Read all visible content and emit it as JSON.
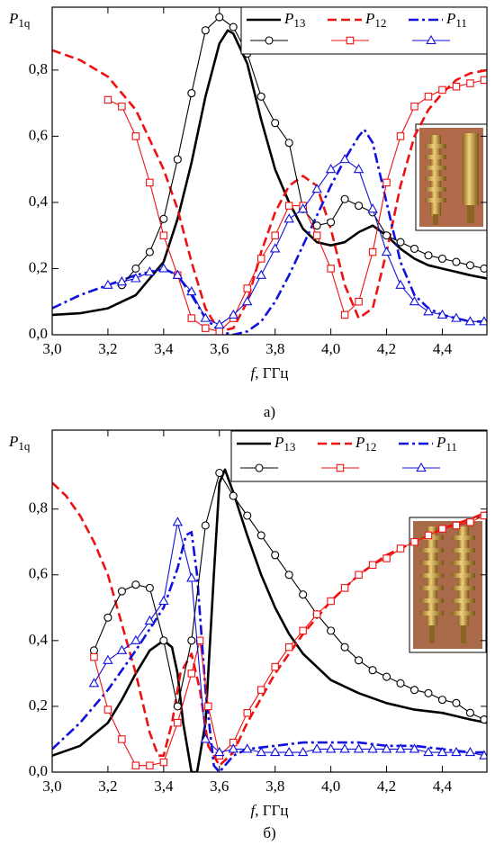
{
  "chart_data": [
    {
      "type": "line",
      "ylabel": "P1q",
      "xlabel": "f, ГГц",
      "caption": "а)",
      "xlim": [
        3.0,
        4.56
      ],
      "ylim": [
        0,
        0.99
      ],
      "xticks": [
        {
          "value": 3.0,
          "label": "3,0"
        },
        {
          "value": 3.2,
          "label": "3,2"
        },
        {
          "value": 3.4,
          "label": "3,4"
        },
        {
          "value": 3.6,
          "label": "3,6"
        },
        {
          "value": 3.8,
          "label": "3,8"
        },
        {
          "value": 4.0,
          "label": "4,0"
        },
        {
          "value": 4.2,
          "label": "4,2"
        },
        {
          "value": 4.4,
          "label": "4,4"
        }
      ],
      "yticks": [
        {
          "value": 0,
          "label": "0,0"
        },
        {
          "value": 0.2,
          "label": "0,2"
        },
        {
          "value": 0.4,
          "label": "0,4"
        },
        {
          "value": 0.6,
          "label": "0,6"
        },
        {
          "value": 0.8,
          "label": "0,8"
        }
      ],
      "series": [
        {
          "name": "P13",
          "color": "#000000",
          "dash": "solid",
          "x": [
            3.0,
            3.1,
            3.2,
            3.3,
            3.4,
            3.45,
            3.5,
            3.55,
            3.6,
            3.63,
            3.65,
            3.7,
            3.75,
            3.8,
            3.85,
            3.9,
            3.95,
            4.0,
            4.05,
            4.1,
            4.15,
            4.2,
            4.25,
            4.3,
            4.35,
            4.4,
            4.45,
            4.5,
            4.56
          ],
          "values": [
            0.06,
            0.065,
            0.08,
            0.12,
            0.22,
            0.35,
            0.52,
            0.72,
            0.88,
            0.92,
            0.91,
            0.82,
            0.65,
            0.5,
            0.4,
            0.32,
            0.28,
            0.27,
            0.28,
            0.31,
            0.33,
            0.3,
            0.26,
            0.23,
            0.21,
            0.2,
            0.19,
            0.18,
            0.17
          ]
        },
        {
          "name": "P12",
          "color": "#ee1111",
          "dash": "dashed",
          "x": [
            3.0,
            3.1,
            3.2,
            3.3,
            3.4,
            3.45,
            3.5,
            3.55,
            3.6,
            3.65,
            3.7,
            3.75,
            3.8,
            3.85,
            3.9,
            3.95,
            4.0,
            4.05,
            4.1,
            4.15,
            4.2,
            4.25,
            4.3,
            4.35,
            4.4,
            4.45,
            4.5,
            4.56
          ],
          "values": [
            0.86,
            0.83,
            0.78,
            0.68,
            0.5,
            0.38,
            0.22,
            0.08,
            0.01,
            0.02,
            0.1,
            0.25,
            0.37,
            0.45,
            0.48,
            0.45,
            0.32,
            0.15,
            0.05,
            0.08,
            0.25,
            0.45,
            0.6,
            0.68,
            0.73,
            0.77,
            0.79,
            0.8
          ]
        },
        {
          "name": "P11",
          "color": "#1111dd",
          "dash": "dashdot",
          "x": [
            3.0,
            3.1,
            3.2,
            3.3,
            3.4,
            3.45,
            3.5,
            3.55,
            3.6,
            3.65,
            3.7,
            3.75,
            3.8,
            3.85,
            3.9,
            3.95,
            4.0,
            4.05,
            4.1,
            4.12,
            4.15,
            4.2,
            4.25,
            4.3,
            4.35,
            4.4,
            4.45,
            4.5,
            4.56
          ],
          "values": [
            0.08,
            0.12,
            0.15,
            0.18,
            0.2,
            0.18,
            0.12,
            0.05,
            0.01,
            0.0,
            0.01,
            0.04,
            0.1,
            0.18,
            0.27,
            0.36,
            0.45,
            0.53,
            0.6,
            0.62,
            0.58,
            0.4,
            0.22,
            0.12,
            0.08,
            0.06,
            0.05,
            0.04,
            0.04
          ]
        },
        {
          "color": "#000000",
          "marker": "circle",
          "x": [
            3.25,
            3.3,
            3.35,
            3.4,
            3.45,
            3.5,
            3.55,
            3.6,
            3.65,
            3.7,
            3.75,
            3.8,
            3.85,
            3.9,
            3.95,
            4.0,
            4.05,
            4.1,
            4.15,
            4.2,
            4.25,
            4.3,
            4.35,
            4.4,
            4.45,
            4.5,
            4.55
          ],
          "values": [
            0.15,
            0.2,
            0.25,
            0.35,
            0.53,
            0.73,
            0.92,
            0.96,
            0.93,
            0.85,
            0.72,
            0.64,
            0.58,
            0.38,
            0.33,
            0.34,
            0.41,
            0.39,
            0.37,
            0.3,
            0.28,
            0.26,
            0.24,
            0.23,
            0.22,
            0.21,
            0.2
          ]
        },
        {
          "color": "#ee1111",
          "marker": "square",
          "x": [
            3.2,
            3.25,
            3.3,
            3.35,
            3.4,
            3.45,
            3.5,
            3.55,
            3.6,
            3.65,
            3.7,
            3.75,
            3.8,
            3.85,
            3.9,
            3.95,
            4.0,
            4.05,
            4.1,
            4.15,
            4.2,
            4.25,
            4.3,
            4.35,
            4.4,
            4.45,
            4.5,
            4.55
          ],
          "values": [
            0.71,
            0.69,
            0.6,
            0.46,
            0.3,
            0.18,
            0.05,
            0.02,
            0.01,
            0.05,
            0.14,
            0.23,
            0.3,
            0.39,
            0.39,
            0.3,
            0.2,
            0.06,
            0.1,
            0.25,
            0.46,
            0.6,
            0.69,
            0.72,
            0.74,
            0.75,
            0.76,
            0.77
          ]
        },
        {
          "color": "#1111dd",
          "marker": "triangle",
          "x": [
            3.2,
            3.25,
            3.3,
            3.35,
            3.4,
            3.45,
            3.5,
            3.55,
            3.6,
            3.65,
            3.7,
            3.75,
            3.8,
            3.85,
            3.9,
            3.95,
            4.0,
            4.05,
            4.1,
            4.15,
            4.2,
            4.25,
            4.3,
            4.35,
            4.4,
            4.45,
            4.5,
            4.55
          ],
          "values": [
            0.15,
            0.16,
            0.17,
            0.19,
            0.2,
            0.18,
            0.13,
            0.05,
            0.03,
            0.06,
            0.1,
            0.18,
            0.26,
            0.35,
            0.38,
            0.44,
            0.5,
            0.53,
            0.5,
            0.38,
            0.25,
            0.15,
            0.1,
            0.07,
            0.06,
            0.05,
            0.04,
            0.04
          ]
        }
      ]
    },
    {
      "type": "line",
      "ylabel": "P1q",
      "xlabel": "f, ГГц",
      "caption": "б)",
      "xlim": [
        3.0,
        4.56
      ],
      "ylim": [
        0,
        1.04
      ],
      "xticks": [
        {
          "value": 3.0,
          "label": "3,0"
        },
        {
          "value": 3.2,
          "label": "3,2"
        },
        {
          "value": 3.4,
          "label": "3,4"
        },
        {
          "value": 3.6,
          "label": "3,6"
        },
        {
          "value": 3.8,
          "label": "3,8"
        },
        {
          "value": 4.0,
          "label": "4,0"
        },
        {
          "value": 4.2,
          "label": "4,2"
        },
        {
          "value": 4.4,
          "label": "4,4"
        }
      ],
      "yticks": [
        {
          "value": 0,
          "label": "0,0"
        },
        {
          "value": 0.2,
          "label": "0,2"
        },
        {
          "value": 0.4,
          "label": "0,4"
        },
        {
          "value": 0.6,
          "label": "0,6"
        },
        {
          "value": 0.8,
          "label": "0,8"
        }
      ],
      "series": [
        {
          "name": "P13",
          "color": "#000000",
          "dash": "solid",
          "x": [
            3.0,
            3.1,
            3.2,
            3.25,
            3.3,
            3.35,
            3.4,
            3.43,
            3.45,
            3.47,
            3.5,
            3.52,
            3.55,
            3.58,
            3.6,
            3.62,
            3.65,
            3.7,
            3.75,
            3.8,
            3.85,
            3.9,
            3.95,
            4.0,
            4.1,
            4.2,
            4.3,
            4.4,
            4.5,
            4.56
          ],
          "values": [
            0.05,
            0.08,
            0.15,
            0.22,
            0.3,
            0.37,
            0.4,
            0.38,
            0.3,
            0.15,
            0.0,
            0.0,
            0.15,
            0.6,
            0.88,
            0.92,
            0.85,
            0.72,
            0.6,
            0.5,
            0.42,
            0.36,
            0.32,
            0.28,
            0.24,
            0.21,
            0.19,
            0.18,
            0.16,
            0.15
          ]
        },
        {
          "name": "P12",
          "color": "#ee1111",
          "dash": "dashed",
          "x": [
            3.0,
            3.05,
            3.1,
            3.15,
            3.2,
            3.25,
            3.3,
            3.35,
            3.38,
            3.4,
            3.43,
            3.46,
            3.5,
            3.53,
            3.56,
            3.6,
            3.65,
            3.7,
            3.8,
            3.9,
            4.0,
            4.1,
            4.2,
            4.3,
            4.4,
            4.5,
            4.56
          ],
          "values": [
            0.88,
            0.84,
            0.78,
            0.7,
            0.6,
            0.45,
            0.3,
            0.12,
            0.05,
            0.05,
            0.15,
            0.3,
            0.36,
            0.25,
            0.08,
            0.02,
            0.06,
            0.15,
            0.3,
            0.42,
            0.52,
            0.6,
            0.66,
            0.7,
            0.74,
            0.77,
            0.79
          ]
        },
        {
          "name": "P11",
          "color": "#1111dd",
          "dash": "dashdot",
          "x": [
            3.0,
            3.1,
            3.2,
            3.3,
            3.4,
            3.45,
            3.48,
            3.5,
            3.52,
            3.55,
            3.58,
            3.6,
            3.65,
            3.7,
            3.8,
            3.9,
            4.0,
            4.1,
            4.2,
            4.3,
            4.4,
            4.5,
            4.56
          ],
          "values": [
            0.07,
            0.15,
            0.25,
            0.37,
            0.5,
            0.62,
            0.72,
            0.73,
            0.6,
            0.25,
            0.02,
            0.0,
            0.05,
            0.07,
            0.08,
            0.09,
            0.09,
            0.09,
            0.08,
            0.08,
            0.07,
            0.06,
            0.06
          ]
        },
        {
          "color": "#000000",
          "marker": "circle",
          "x": [
            3.15,
            3.2,
            3.25,
            3.3,
            3.35,
            3.4,
            3.45,
            3.5,
            3.55,
            3.6,
            3.65,
            3.7,
            3.75,
            3.8,
            3.85,
            3.9,
            3.95,
            4.0,
            4.05,
            4.1,
            4.15,
            4.2,
            4.25,
            4.3,
            4.35,
            4.4,
            4.45,
            4.5,
            4.55
          ],
          "values": [
            0.37,
            0.47,
            0.55,
            0.57,
            0.56,
            0.4,
            0.2,
            0.4,
            0.75,
            0.91,
            0.84,
            0.78,
            0.72,
            0.66,
            0.6,
            0.54,
            0.48,
            0.43,
            0.38,
            0.34,
            0.31,
            0.29,
            0.27,
            0.25,
            0.24,
            0.22,
            0.21,
            0.18,
            0.16
          ]
        },
        {
          "color": "#ee1111",
          "marker": "square",
          "x": [
            3.15,
            3.2,
            3.25,
            3.3,
            3.35,
            3.4,
            3.45,
            3.5,
            3.53,
            3.56,
            3.6,
            3.65,
            3.7,
            3.75,
            3.8,
            3.85,
            3.9,
            3.95,
            4.0,
            4.05,
            4.1,
            4.15,
            4.2,
            4.25,
            4.3,
            4.35,
            4.4,
            4.45,
            4.5,
            4.55
          ],
          "values": [
            0.35,
            0.19,
            0.1,
            0.02,
            0.02,
            0.03,
            0.15,
            0.3,
            0.4,
            0.2,
            0.05,
            0.09,
            0.18,
            0.25,
            0.32,
            0.38,
            0.43,
            0.48,
            0.52,
            0.56,
            0.6,
            0.63,
            0.65,
            0.68,
            0.7,
            0.72,
            0.74,
            0.75,
            0.76,
            0.78
          ]
        },
        {
          "color": "#1111dd",
          "marker": "triangle",
          "x": [
            3.15,
            3.2,
            3.25,
            3.3,
            3.35,
            3.4,
            3.45,
            3.5,
            3.55,
            3.6,
            3.65,
            3.7,
            3.75,
            3.8,
            3.85,
            3.9,
            3.95,
            4.0,
            4.05,
            4.1,
            4.15,
            4.2,
            4.25,
            4.3,
            4.35,
            4.4,
            4.45,
            4.5,
            4.55
          ],
          "values": [
            0.27,
            0.34,
            0.37,
            0.4,
            0.46,
            0.52,
            0.76,
            0.59,
            0.1,
            0.06,
            0.07,
            0.07,
            0.06,
            0.06,
            0.06,
            0.06,
            0.07,
            0.07,
            0.07,
            0.07,
            0.07,
            0.07,
            0.07,
            0.07,
            0.06,
            0.06,
            0.06,
            0.06,
            0.05
          ]
        }
      ]
    }
  ]
}
